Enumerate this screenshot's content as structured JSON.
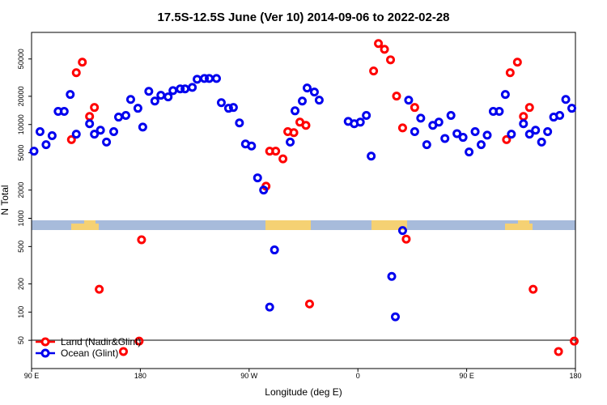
{
  "chart_data": {
    "type": "scatter",
    "title": "17.5S-12.5S June (Ver 10)   2014-09-06 to 2022-02-28",
    "x_label": "Longitude (deg E)",
    "y_label": "N Total",
    "log_y": true,
    "xlim": [
      90,
      540
    ],
    "ylim": [
      25,
      96000
    ],
    "xticks": [
      {
        "value": 90,
        "label": "90 E"
      },
      180,
      {
        "value": 270,
        "label": "90 W"
      },
      {
        "value": 360,
        "label": "0"
      },
      {
        "value": 450,
        "label": "90 E"
      },
      {
        "value": 540,
        "label": "180"
      }
    ],
    "yticks": [
      50,
      100,
      200,
      500,
      1000,
      2000,
      5000,
      10000,
      20000,
      50000
    ],
    "legend": "bottom-left",
    "series": [
      {
        "name": "Land (Nadir&Glint)",
        "color": "#ff0000",
        "x": [
          123,
          127,
          132,
          138,
          142,
          146,
          166,
          179,
          181,
          284,
          287,
          292,
          298,
          302,
          307,
          312,
          317,
          320,
          373,
          377,
          382,
          387,
          392,
          397,
          400,
          407,
          483,
          486,
          492,
          497,
          502,
          505,
          526,
          539
        ],
        "values": [
          6900,
          35700,
          46200,
          12200,
          15200,
          175,
          38,
          49,
          590,
          2200,
          5200,
          5200,
          4300,
          8400,
          8200,
          10600,
          9800,
          122,
          37200,
          73000,
          63400,
          49000,
          20100,
          9200,
          600,
          15200,
          6900,
          35700,
          46200,
          12200,
          15200,
          175,
          38,
          49
        ]
      },
      {
        "name": "Ocean (Glint)",
        "color": "#0000ee",
        "x": [
          92,
          97,
          102,
          107,
          112,
          117,
          122,
          127,
          138,
          142,
          147,
          152,
          158,
          162,
          168,
          172,
          178,
          182,
          187,
          192,
          197,
          203,
          207,
          213,
          217,
          223,
          227,
          233,
          237,
          243,
          247,
          253,
          257,
          262,
          267,
          272,
          277,
          282,
          287,
          291,
          304,
          308,
          314,
          318,
          324,
          328,
          352,
          357,
          362,
          367,
          371,
          388,
          391,
          397,
          402,
          407,
          412,
          417,
          422,
          427,
          432,
          437,
          442,
          447,
          452,
          457,
          462,
          467,
          472,
          477,
          482,
          487,
          497,
          502,
          507,
          512,
          517,
          522,
          527,
          532,
          537
        ],
        "values": [
          5200,
          8400,
          6100,
          7600,
          13800,
          13800,
          20900,
          7900,
          10200,
          7900,
          8700,
          6500,
          8400,
          12000,
          12500,
          18500,
          14900,
          9400,
          22600,
          17800,
          20500,
          19700,
          23000,
          24000,
          24000,
          24900,
          30400,
          31000,
          31000,
          31000,
          17100,
          14900,
          15200,
          10400,
          6200,
          5900,
          2700,
          2000,
          113,
          460,
          6500,
          14000,
          17800,
          24500,
          22200,
          18200,
          10800,
          10200,
          10600,
          12500,
          4600,
          240,
          89,
          740,
          18200,
          8400,
          11700,
          6100,
          9800,
          10600,
          7100,
          12500,
          8000,
          7300,
          5100,
          8400,
          6100,
          7700,
          13800,
          13800,
          20900,
          7900,
          10200,
          7900,
          8700,
          6500,
          8400,
          12000,
          12500,
          18500,
          14900
        ]
      }
    ]
  }
}
